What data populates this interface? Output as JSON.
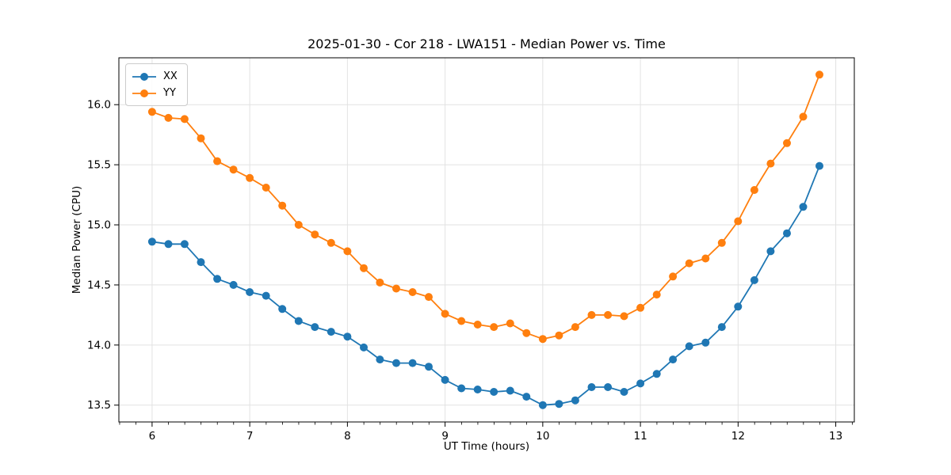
{
  "chart_data": {
    "type": "line",
    "title": "2025-01-30 - Cor 218 - LWA151 - Median Power vs. Time",
    "xlabel": "UT Time (hours)",
    "ylabel": "Median Power (CPU)",
    "xlim": [
      5.66,
      13.19
    ],
    "ylim": [
      13.36,
      16.39
    ],
    "x_ticks": [
      6,
      7,
      8,
      9,
      10,
      11,
      12,
      13
    ],
    "y_ticks": [
      13.5,
      14.0,
      14.5,
      15.0,
      15.5,
      16.0
    ],
    "x_minor_tick_step": 0.1667,
    "grid": true,
    "legend_position": "upper-left",
    "x": [
      6.0,
      6.167,
      6.333,
      6.5,
      6.667,
      6.833,
      7.0,
      7.167,
      7.333,
      7.5,
      7.667,
      7.833,
      8.0,
      8.167,
      8.333,
      8.5,
      8.667,
      8.833,
      9.0,
      9.167,
      9.333,
      9.5,
      9.667,
      9.833,
      10.0,
      10.167,
      10.333,
      10.5,
      10.667,
      10.833,
      11.0,
      11.167,
      11.333,
      11.5,
      11.667,
      11.833,
      12.0,
      12.167,
      12.333,
      12.5,
      12.667,
      12.833
    ],
    "series": [
      {
        "name": "XX",
        "color": "#1f77b4",
        "values": [
          14.86,
          14.84,
          14.84,
          14.69,
          14.55,
          14.5,
          14.44,
          14.41,
          14.3,
          14.2,
          14.15,
          14.11,
          14.07,
          13.98,
          13.88,
          13.85,
          13.85,
          13.82,
          13.71,
          13.64,
          13.63,
          13.61,
          13.62,
          13.57,
          13.5,
          13.51,
          13.54,
          13.65,
          13.65,
          13.61,
          13.68,
          13.76,
          13.88,
          13.99,
          14.02,
          14.15,
          14.32,
          14.54,
          14.78,
          14.93,
          15.15,
          15.49
        ]
      },
      {
        "name": "YY",
        "color": "#ff7f0e",
        "values": [
          15.94,
          15.89,
          15.88,
          15.72,
          15.53,
          15.46,
          15.39,
          15.31,
          15.16,
          15.0,
          14.92,
          14.85,
          14.78,
          14.64,
          14.52,
          14.47,
          14.44,
          14.4,
          14.26,
          14.2,
          14.17,
          14.15,
          14.18,
          14.1,
          14.05,
          14.08,
          14.15,
          14.25,
          14.25,
          14.24,
          14.31,
          14.42,
          14.57,
          14.68,
          14.72,
          14.85,
          15.03,
          15.29,
          15.51,
          15.68,
          15.9,
          16.25
        ]
      }
    ]
  },
  "styles": {
    "grid_color": "#e2e2e2",
    "spine_color": "#000000",
    "background": "#ffffff",
    "legend_border": "#cccccc"
  }
}
